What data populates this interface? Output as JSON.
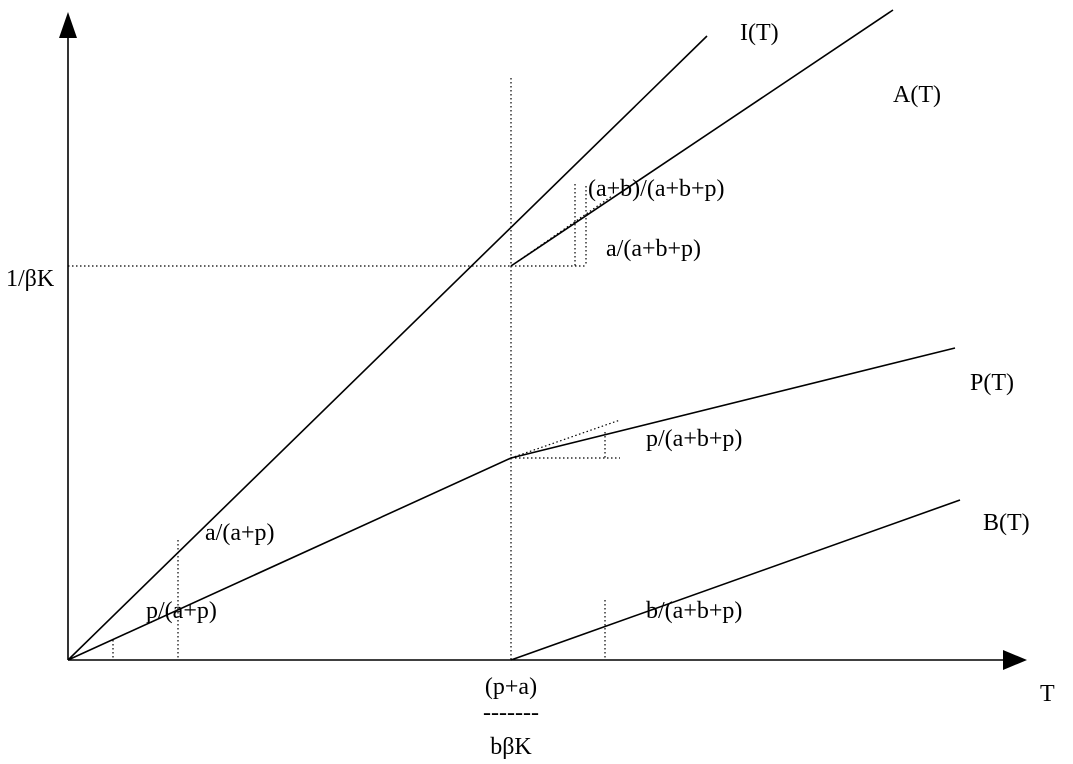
{
  "axes": {
    "x_label": "T",
    "y_tick_label": "1/βK",
    "x_tick_label_lines": [
      "(p+a)",
      "-------",
      "bβK"
    ]
  },
  "curves": {
    "I": "I(T)",
    "A": "A(T)",
    "P": "P(T)",
    "B": "B(T)"
  },
  "slopes": {
    "ab_over_abp": "(a+b)/(a+b+p)",
    "a_over_abp": "a/(a+b+p)",
    "p_over_abp": "p/(a+b+p)",
    "a_over_ap": "a/(a+p)",
    "p_over_ap": "p/(a+p)",
    "b_over_abp": "b/(a+b+p)"
  }
}
